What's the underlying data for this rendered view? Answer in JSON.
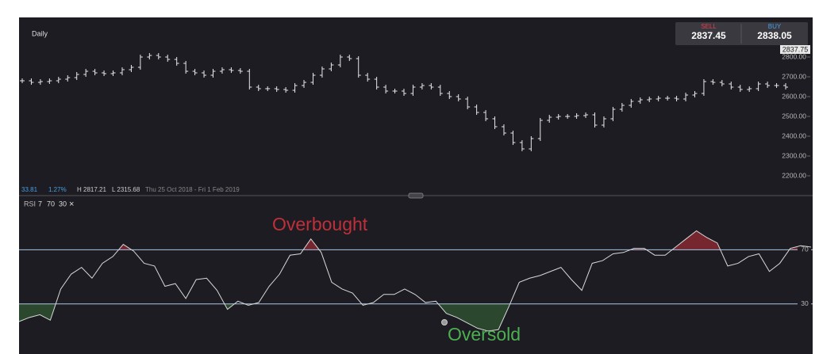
{
  "header": {
    "timeframe": "Daily"
  },
  "quote": {
    "sell_label": "SELL",
    "sell": "2837.45",
    "buy_label": "BUY",
    "buy": "2838.05",
    "last": "2837.75"
  },
  "stats": {
    "change": "33.81",
    "change_pct": "1.27%",
    "high": "H 2817.21",
    "low": "L 2315.68",
    "range": "Thu 25 Oct 2018 - Fri 1 Feb 2019"
  },
  "chart_data": [
    {
      "type": "ohlc",
      "color": "#e8e8e8",
      "values": [
        2680,
        2672,
        2676,
        2680,
        2688,
        2696,
        2712,
        2728,
        2720,
        2716,
        2720,
        2736,
        2748,
        2800,
        2808,
        2800,
        2788,
        2768,
        2728,
        2720,
        2708,
        2728,
        2736,
        2732,
        2728,
        2648,
        2640,
        2640,
        2636,
        2632,
        2656,
        2672,
        2708,
        2740,
        2760,
        2800,
        2792,
        2708,
        2688,
        2648,
        2628,
        2628,
        2616,
        2648,
        2656,
        2648,
        2616,
        2600,
        2588,
        2548,
        2520,
        2488,
        2448,
        2416,
        2368,
        2336,
        2388,
        2480,
        2496,
        2500,
        2500,
        2504,
        2508,
        2456,
        2488,
        2536,
        2556,
        2576,
        2584,
        2588,
        2592,
        2592,
        2588,
        2608,
        2616,
        2676,
        2672,
        2664,
        2648,
        2636,
        2640,
        2664,
        2656,
        2656,
        2648
      ],
      "ylim": [
        2100,
        3000
      ],
      "yticks": [
        {
          "value": 2200,
          "label": "2200.00"
        },
        {
          "value": 2300,
          "label": "2300.00"
        },
        {
          "value": 2400,
          "label": "2400.00"
        },
        {
          "value": 2500,
          "label": "2500.00"
        },
        {
          "value": 2600,
          "label": "2600.00"
        },
        {
          "value": 2700,
          "label": "2700.00"
        },
        {
          "value": 2800,
          "label": "2800.00"
        }
      ]
    },
    {
      "type": "line",
      "title": "RSI",
      "params": [
        "7",
        "70",
        "30"
      ],
      "close": "×",
      "color": "#d8d8d8",
      "values": [
        17,
        20,
        22,
        18,
        41,
        52,
        57,
        49,
        60,
        65,
        74,
        69,
        60,
        58,
        43,
        45,
        34,
        48,
        49,
        40,
        26,
        32,
        29,
        31,
        43,
        52,
        66,
        67,
        78,
        68,
        46,
        41,
        38,
        29,
        31,
        37,
        37,
        41,
        37,
        31,
        32,
        23,
        20,
        16,
        12,
        10,
        11,
        28,
        46,
        49,
        51,
        54,
        57,
        48,
        40,
        60,
        62,
        67,
        68,
        71,
        71,
        66,
        66,
        72,
        78,
        84,
        79,
        75,
        58,
        60,
        65,
        67,
        54,
        60,
        71,
        73,
        72
      ],
      "ylim": [
        -7,
        110
      ],
      "yticks": [
        30,
        70
      ],
      "overbought_color": "#c0303a",
      "oversold_color": "#4caf50",
      "annotations": [
        "Overbought",
        "Oversold"
      ]
    }
  ]
}
